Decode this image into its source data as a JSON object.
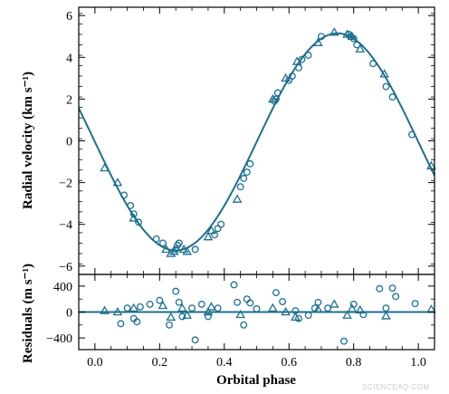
{
  "chart_data": [
    {
      "type": "line",
      "panel": "top",
      "xlabel": "",
      "ylabel": "Radial velocity (km s⁻¹)",
      "xlim": [
        -0.05,
        1.05
      ],
      "ylim": [
        -6.4,
        6.4
      ],
      "yticks": [
        -6,
        -4,
        -2,
        0,
        2,
        4,
        6
      ],
      "ytick_labels": [
        "−6",
        "−4",
        "−2",
        "0",
        "2",
        "4",
        "6"
      ],
      "color": "#1e6f8e",
      "model": {
        "name": "",
        "description": "sinusoidal orbit fit",
        "offset": -0.05,
        "amplitude": 5.2,
        "phase_of_minimum": 0.25,
        "phase_of_maximum": 0.75
      },
      "series": [
        {
          "name": "",
          "marker": "circle",
          "x": [
            0.09,
            0.11,
            0.12,
            0.135,
            0.19,
            0.21,
            0.25,
            0.255,
            0.26,
            0.31,
            0.37,
            0.38,
            0.39,
            0.45,
            0.46,
            0.47,
            0.48,
            0.555,
            0.56,
            0.565,
            0.6,
            0.61,
            0.63,
            0.64,
            0.66,
            0.7,
            0.785,
            0.79,
            0.8,
            0.81,
            0.86,
            0.9,
            0.92,
            0.98
          ],
          "y": [
            -2.6,
            -3.1,
            -3.5,
            -3.9,
            -4.7,
            -4.9,
            -5.2,
            -5.0,
            -4.9,
            -5.2,
            -4.5,
            -4.2,
            -4.0,
            -2.2,
            -1.8,
            -1.5,
            -1.1,
            1.9,
            2.0,
            2.3,
            2.9,
            3.1,
            3.5,
            3.9,
            4.1,
            5.0,
            5.1,
            5.0,
            4.9,
            4.6,
            3.7,
            2.6,
            2.1,
            0.3
          ]
        },
        {
          "name": "",
          "marker": "triangle",
          "x": [
            0.03,
            0.07,
            0.12,
            0.22,
            0.235,
            0.245,
            0.275,
            0.285,
            0.35,
            0.36,
            0.44,
            0.55,
            0.59,
            0.625,
            0.69,
            0.74,
            0.78,
            0.795,
            0.82,
            0.895,
            1.04
          ],
          "y": [
            -1.3,
            -2.0,
            -3.7,
            -5.2,
            -5.4,
            -5.3,
            -5.2,
            -5.3,
            -4.6,
            -4.3,
            -2.8,
            2.0,
            3.0,
            3.8,
            4.7,
            5.2,
            5.1,
            5.0,
            4.4,
            3.2,
            -1.2
          ]
        }
      ]
    },
    {
      "type": "scatter",
      "panel": "bottom",
      "xlabel": "Orbital phase",
      "ylabel": "Residuals (m s⁻¹)",
      "xlim": [
        -0.05,
        1.05
      ],
      "ylim": [
        -580,
        580
      ],
      "xticks": [
        0.0,
        0.2,
        0.4,
        0.6,
        0.8,
        1.0
      ],
      "xtick_labels": [
        "0.0",
        "0.2",
        "0.4",
        "0.6",
        "0.8",
        "1.0"
      ],
      "yticks": [
        -400,
        0,
        400
      ],
      "ytick_labels": [
        "−400",
        "0",
        "400"
      ],
      "color": "#1e6f8e",
      "series": [
        {
          "name": "",
          "marker": "circle",
          "x": [
            0.08,
            0.1,
            0.12,
            0.13,
            0.14,
            0.17,
            0.2,
            0.23,
            0.25,
            0.26,
            0.27,
            0.3,
            0.31,
            0.33,
            0.35,
            0.38,
            0.43,
            0.44,
            0.46,
            0.47,
            0.48,
            0.5,
            0.56,
            0.58,
            0.62,
            0.63,
            0.66,
            0.68,
            0.69,
            0.72,
            0.77,
            0.8,
            0.83,
            0.88,
            0.9,
            0.92,
            0.93,
            0.99
          ],
          "y": [
            -180,
            60,
            -100,
            -150,
            80,
            120,
            180,
            -200,
            320,
            150,
            -70,
            60,
            -430,
            120,
            -70,
            60,
            420,
            150,
            -200,
            200,
            140,
            50,
            300,
            160,
            20,
            -100,
            -50,
            60,
            150,
            60,
            -450,
            120,
            -40,
            360,
            60,
            370,
            240,
            130
          ]
        },
        {
          "name": "",
          "marker": "triangle",
          "x": [
            0.03,
            0.07,
            0.12,
            0.21,
            0.235,
            0.27,
            0.285,
            0.35,
            0.36,
            0.45,
            0.55,
            0.59,
            0.62,
            0.69,
            0.74,
            0.78,
            0.795,
            0.82,
            0.9,
            1.04
          ],
          "y": [
            20,
            0,
            60,
            100,
            -80,
            60,
            -50,
            0,
            80,
            -40,
            60,
            0,
            -80,
            40,
            120,
            -50,
            50,
            30,
            -60,
            40
          ]
        }
      ]
    }
  ],
  "watermark": "SCIENCEAQ.COM"
}
